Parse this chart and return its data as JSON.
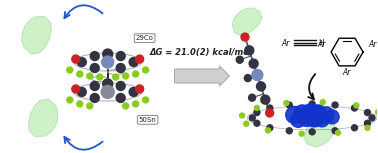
{
  "background_color": "#ffffff",
  "arrow_text": "ΔG = 21.0(2) kcal/mol",
  "fig_width": 3.78,
  "fig_height": 1.53,
  "dpi": 100,
  "label_co_text": "29Co",
  "label_sn_text": "50Sn",
  "glove_color": "#c8f0c0",
  "glove_edge": "#aaddaa",
  "blue_arrow_color": "#2255cc",
  "bond_color": "#445566",
  "co_color": "#7788bb",
  "sn_color": "#888899",
  "red_color": "#cc2222",
  "green_color": "#88cc22",
  "dark_color": "#333344",
  "blue_ball_color": "#1133cc",
  "arrow_fill": "#d0d0d0",
  "arrow_edge": "#aaaaaa",
  "curve_arrow_color": "#111111"
}
